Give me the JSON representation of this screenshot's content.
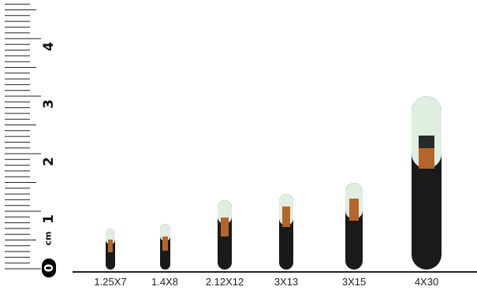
{
  "ruler": {
    "unit": "cm",
    "zero": "0",
    "numbers": [
      "1",
      "2",
      "3",
      "4"
    ]
  },
  "tags": [
    {
      "label": "1.25X7"
    },
    {
      "label": "1.4X8"
    },
    {
      "label": "2.12X12"
    },
    {
      "label": "3X13"
    },
    {
      "label": "3X15"
    },
    {
      "label": "4X30"
    }
  ],
  "colors": {
    "glass": "#dfeee0",
    "body": "#1a1a1a",
    "coil": "#b5652a"
  }
}
